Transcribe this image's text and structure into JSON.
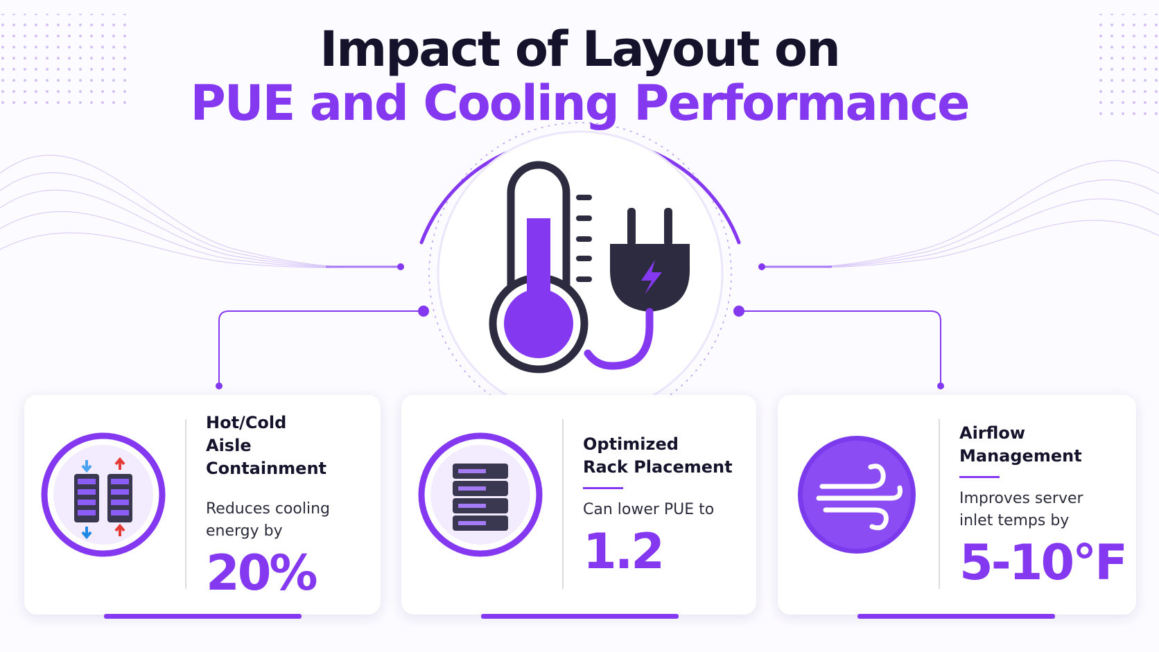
{
  "header": {
    "title_line1": "Impact of Layout on",
    "title_line2": "PUE and Cooling Performance"
  },
  "cards": [
    {
      "heading": [
        "Hot/Cold",
        "Aisle Containment"
      ],
      "description": [
        "Reduces cooling",
        "energy by"
      ],
      "stat": "20%"
    },
    {
      "heading": [
        "Optimized",
        "Rack Placement"
      ],
      "description": [
        "Can lower PUE to"
      ],
      "stat": "1.2"
    },
    {
      "heading": [
        "Airflow",
        "Management"
      ],
      "description": [
        "Improves server",
        "inlet temps by"
      ],
      "stat": "5-10°F"
    }
  ]
}
